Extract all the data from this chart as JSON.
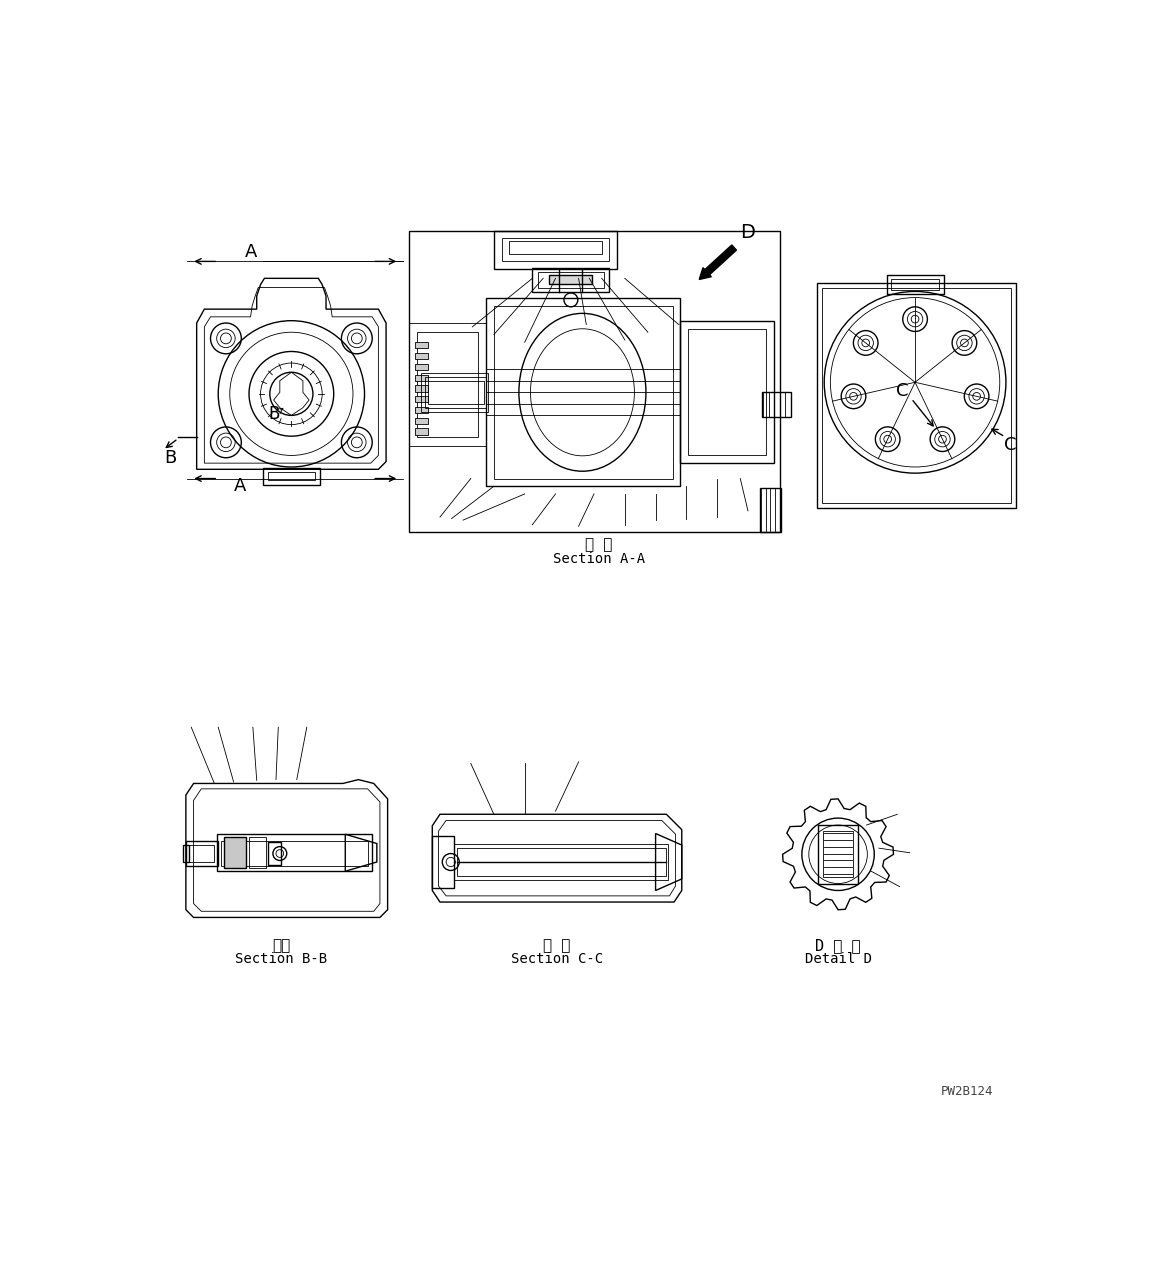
{
  "title": "",
  "background_color": "#ffffff",
  "line_color": "#000000",
  "labels": {
    "section_aa_jp": "断 面",
    "section_aa": "Section A-A",
    "section_bb_jp": "断面",
    "section_bb": "Section B-B",
    "section_cc_jp": "断 面",
    "section_cc": "Section C-C",
    "detail_d_jp": "D 詳 細",
    "detail_d": "Detail D",
    "watermark": "PW2B124",
    "label_A": "A",
    "label_B": "B",
    "label_C": "C",
    "label_D": "D"
  },
  "font_size_label": 11,
  "font_size_section": 10,
  "font_size_watermark": 9
}
